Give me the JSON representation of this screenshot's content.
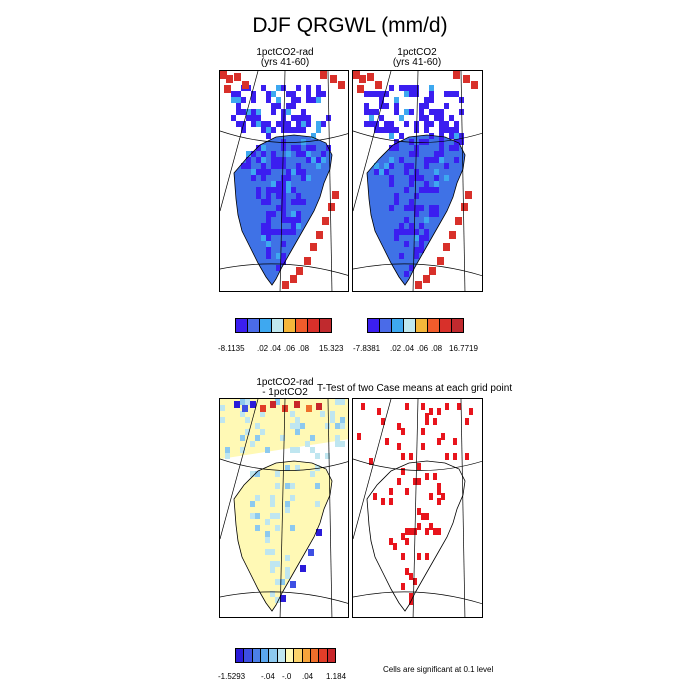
{
  "title": "DJF QRGWL (mm/d)",
  "ttest_title": "T-Test of two Case means at each grid point",
  "significance_note": "Cells are significant at 0.1 level",
  "colors": {
    "levels_abs": [
      "#3b1ef0",
      "#4a6be8",
      "#3ea8f0",
      "#bfe8ef",
      "#f4b63a",
      "#f15c2b",
      "#d8302a",
      "#c02a2e"
    ],
    "levels_diff": [
      "#2a1bd9",
      "#3d4fe3",
      "#4b7fe8",
      "#5aa6ee",
      "#8cc9ef",
      "#bfe6f0",
      "#fff9b5",
      "#fbd36b",
      "#f6a43b",
      "#ef6f2b",
      "#e13d28",
      "#c8262a"
    ],
    "sig": "#e8141c"
  },
  "chart_data": [
    {
      "type": "heatmap",
      "title": "1pctCO2-rad",
      "subtitle": "(yrs 41-60)",
      "colorbar_labels": [
        "-8.1135",
        ".02",
        ".04",
        ".06",
        ".08",
        "15.323"
      ],
      "colorbar_range": [
        -8.1135,
        15.323
      ]
    },
    {
      "type": "heatmap",
      "title": "1pctCO2",
      "subtitle": "(yrs 41-60)",
      "colorbar_labels": [
        "-7.8381",
        ".02",
        ".04",
        ".06",
        ".08",
        "16.7719"
      ],
      "colorbar_range": [
        -7.8381,
        16.7719
      ]
    },
    {
      "type": "heatmap",
      "title": "1pctCO2-rad",
      "subtitle": "- 1pctCO2",
      "colorbar_labels": [
        "-1.5293",
        "-.04",
        "-.0",
        ".04",
        "1.184"
      ],
      "colorbar_range": [
        -1.5293,
        1.184
      ]
    },
    {
      "type": "heatmap",
      "title": "T-Test of two Case means at each grid point",
      "subtitle": "",
      "colorbar_labels": [],
      "colorbar_range": []
    }
  ]
}
